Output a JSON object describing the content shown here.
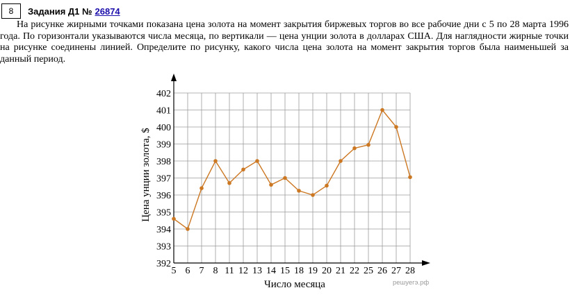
{
  "task": {
    "number": "8",
    "title": "Задания Д1 №",
    "id_link": "26874"
  },
  "problem_text": "На рисунке жирными точками показана цена золота на момент закрытия биржевых торгов во все рабочие дни с 5 по 28 марта 1996 года. По горизонтали указываются числа месяца, по вертикали — цена унции золота в долларах США. Для наглядности жирные точки на рисунке соединены линией. Определите по рисунку, какого числа цена золота на момент закрытия торгов была наименьшей за данный период.",
  "chart_data": {
    "type": "line",
    "title": "",
    "xlabel": "Число месяца",
    "ylabel": "Цена унции золота, $",
    "categories": [
      "5",
      "6",
      "7",
      "8",
      "11",
      "12",
      "13",
      "14",
      "15",
      "18",
      "19",
      "20",
      "21",
      "22",
      "25",
      "26",
      "27",
      "28"
    ],
    "values": [
      394.6,
      394.0,
      396.4,
      398.0,
      396.7,
      397.5,
      398.0,
      396.6,
      397.0,
      396.25,
      396.0,
      396.55,
      398.0,
      398.75,
      398.95,
      401.0,
      400.0,
      397.05
    ],
    "ylim": [
      392,
      402
    ],
    "yticks": [
      "392",
      "393",
      "394",
      "395",
      "396",
      "397",
      "398",
      "399",
      "400",
      "401",
      "402"
    ],
    "grid": true,
    "line_color": "#cc7722",
    "marker_color": "#cc7722"
  },
  "watermark": "решуегэ.рф"
}
